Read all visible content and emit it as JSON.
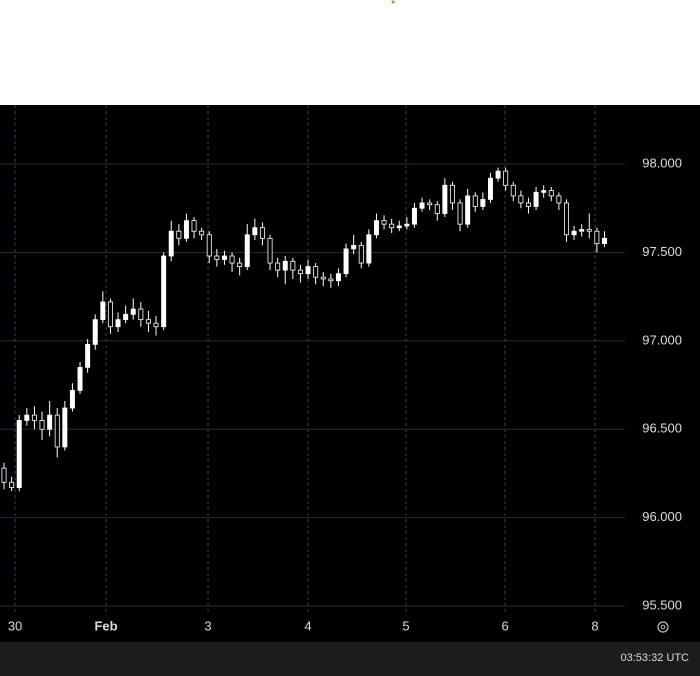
{
  "chart_data": {
    "type": "candlestick",
    "up_color": "#ffffff",
    "down_color": "#000000",
    "wick_color": "#ffffff",
    "grid": true,
    "ylim": [
      95.455,
      98.334
    ],
    "yticks": [
      {
        "value": 95.5,
        "label": "95.500"
      },
      {
        "value": 96,
        "label": "96.000"
      },
      {
        "value": 96.5,
        "label": "96.500"
      },
      {
        "value": 97,
        "label": "97.000"
      },
      {
        "value": 97.5,
        "label": "97.500"
      },
      {
        "value": 98,
        "label": "98.000"
      }
    ],
    "xlim": [
      -0.53,
      81.7
    ],
    "xticks": [
      {
        "value": 1.45,
        "label": "30"
      },
      {
        "value": 13.42,
        "label": "Feb"
      },
      {
        "value": 26.84,
        "label": "3"
      },
      {
        "value": 40,
        "label": "4"
      },
      {
        "value": 52.89,
        "label": "5"
      },
      {
        "value": 65.92,
        "label": "6"
      },
      {
        "value": 77.76,
        "label": "8"
      }
    ],
    "open": [
      96.28,
      96.2,
      96.17,
      96.55,
      96.58,
      96.55,
      96.5,
      96.58,
      96.4,
      96.62,
      96.72,
      96.85,
      96.98,
      97.12,
      97.22,
      97.08,
      97.12,
      97.15,
      97.18,
      97.12,
      97.1,
      97.08,
      97.48,
      97.62,
      97.58,
      97.68,
      97.62,
      97.6,
      97.48,
      97.46,
      97.48,
      97.44,
      97.42,
      97.6,
      97.64,
      97.58,
      97.44,
      97.4,
      97.45,
      97.4,
      97.38,
      97.42,
      97.36,
      97.35,
      97.34,
      97.38,
      97.52,
      97.54,
      97.44,
      97.6,
      97.68,
      97.66,
      97.64,
      97.65,
      97.66,
      97.75,
      97.78,
      97.77,
      97.72,
      97.88,
      97.78,
      97.66,
      97.82,
      97.76,
      97.8,
      97.92,
      97.96,
      97.88,
      97.82,
      97.78,
      97.76,
      97.84,
      97.85,
      97.82,
      97.78,
      97.6,
      97.62,
      97.63,
      97.62,
      97.55
    ],
    "high": [
      96.31,
      96.23,
      96.58,
      96.62,
      96.63,
      96.6,
      96.66,
      96.62,
      96.66,
      96.76,
      96.88,
      97.01,
      97.15,
      97.28,
      97.24,
      97.16,
      97.2,
      97.24,
      97.22,
      97.17,
      97.14,
      97.5,
      97.68,
      97.66,
      97.72,
      97.7,
      97.64,
      97.62,
      97.52,
      97.51,
      97.5,
      97.47,
      97.66,
      97.69,
      97.67,
      97.6,
      97.47,
      97.48,
      97.47,
      97.43,
      97.46,
      97.44,
      97.39,
      97.38,
      97.41,
      97.55,
      97.6,
      97.56,
      97.63,
      97.72,
      97.71,
      97.69,
      97.68,
      97.7,
      97.78,
      97.81,
      97.8,
      97.79,
      97.92,
      97.9,
      97.8,
      97.86,
      97.84,
      97.84,
      97.95,
      97.98,
      97.98,
      97.9,
      97.85,
      97.81,
      97.87,
      97.88,
      97.87,
      97.84,
      97.8,
      97.65,
      97.66,
      97.72,
      97.64,
      97.62
    ],
    "low": [
      96.16,
      96.15,
      96.15,
      96.52,
      96.5,
      96.44,
      96.46,
      96.34,
      96.38,
      96.6,
      96.7,
      96.82,
      96.95,
      97.1,
      97.04,
      97.05,
      97.1,
      97.12,
      97.08,
      97.05,
      97.03,
      97.06,
      97.45,
      97.54,
      97.56,
      97.58,
      97.57,
      97.44,
      97.42,
      97.43,
      97.39,
      97.37,
      97.4,
      97.57,
      97.54,
      97.4,
      97.36,
      97.32,
      97.35,
      97.33,
      97.35,
      97.32,
      97.31,
      97.3,
      97.31,
      97.36,
      97.49,
      97.41,
      97.42,
      97.58,
      97.63,
      97.61,
      97.62,
      97.63,
      97.64,
      97.73,
      97.74,
      97.68,
      97.7,
      97.74,
      97.62,
      97.64,
      97.73,
      97.74,
      97.78,
      97.9,
      97.85,
      97.79,
      97.75,
      97.72,
      97.74,
      97.81,
      97.79,
      97.74,
      97.56,
      97.57,
      97.59,
      97.58,
      97.5,
      97.53
    ],
    "close": [
      96.2,
      96.17,
      96.55,
      96.58,
      96.55,
      96.5,
      96.58,
      96.4,
      96.62,
      96.72,
      96.85,
      96.98,
      97.12,
      97.22,
      97.08,
      97.12,
      97.15,
      97.18,
      97.12,
      97.1,
      97.08,
      97.48,
      97.62,
      97.58,
      97.68,
      97.62,
      97.6,
      97.48,
      97.46,
      97.48,
      97.44,
      97.42,
      97.6,
      97.64,
      97.58,
      97.44,
      97.4,
      97.45,
      97.4,
      97.38,
      97.42,
      97.36,
      97.35,
      97.34,
      97.38,
      97.52,
      97.54,
      97.44,
      97.6,
      97.68,
      97.66,
      97.64,
      97.65,
      97.66,
      97.75,
      97.78,
      97.77,
      97.72,
      97.88,
      97.78,
      97.66,
      97.82,
      97.76,
      97.8,
      97.92,
      97.96,
      97.88,
      97.82,
      97.78,
      97.76,
      97.84,
      97.85,
      97.82,
      97.78,
      97.6,
      97.62,
      97.63,
      97.62,
      97.55,
      97.58
    ]
  },
  "footer": {
    "time": "03:53:32 UTC"
  }
}
